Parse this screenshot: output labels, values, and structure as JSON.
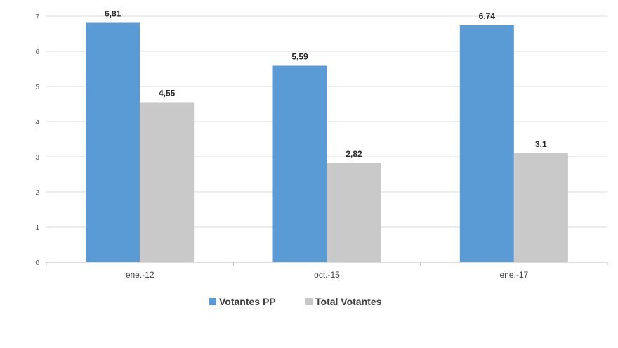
{
  "chart_data": {
    "type": "bar",
    "categories": [
      "ene.-12",
      "oct.-15",
      "ene.-17"
    ],
    "series": [
      {
        "name": "Votantes PP",
        "values": [
          6.81,
          5.59,
          6.74
        ],
        "labels": [
          "6,81",
          "5,59",
          "6,74"
        ],
        "color": "#5b9bd5"
      },
      {
        "name": "Total Votantes",
        "values": [
          4.55,
          2.82,
          3.1
        ],
        "labels": [
          "4,55",
          "2,82",
          "3,1"
        ],
        "color": "#c9c9c9"
      }
    ],
    "yticks": [
      "0",
      "1",
      "2",
      "3",
      "4",
      "5",
      "6",
      "7"
    ],
    "ylim": [
      0,
      7
    ],
    "grid": true,
    "legend_position": "bottom",
    "title": "",
    "xlabel": "",
    "ylabel": ""
  }
}
